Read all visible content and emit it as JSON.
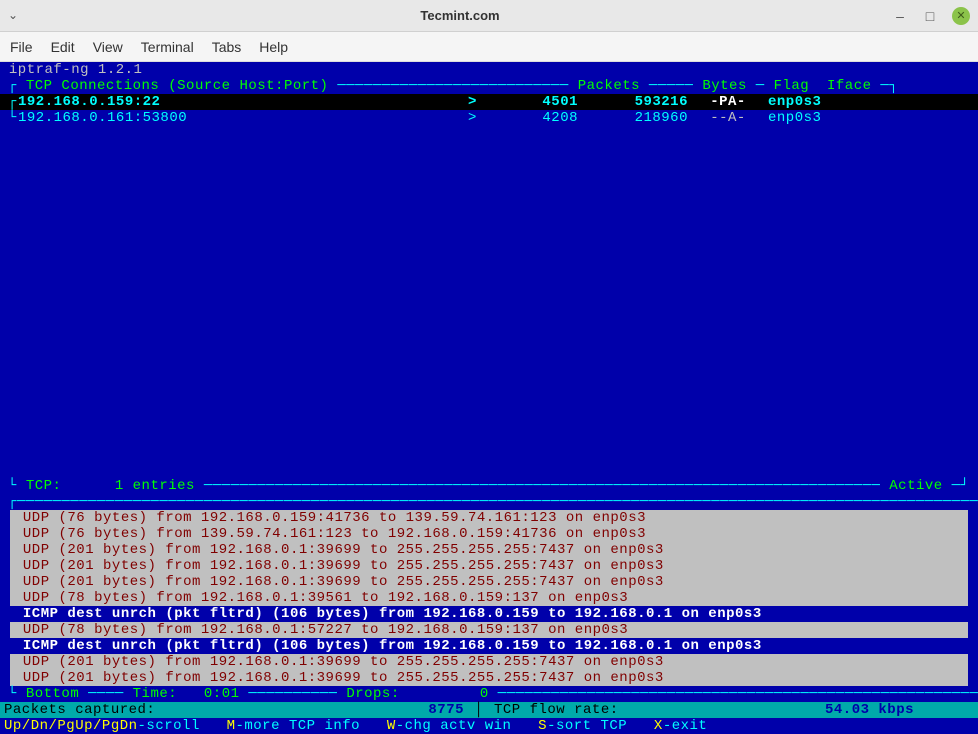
{
  "window": {
    "title": "Tecmint.com"
  },
  "menubar": [
    "File",
    "Edit",
    "View",
    "Terminal",
    "Tabs",
    "Help"
  ],
  "terminal": {
    "program_title": " iptraf-ng 1.2.1",
    "tcp_header": {
      "label": "TCP Connections (Source Host:Port)",
      "packets": "Packets",
      "bytes": "Bytes",
      "flag": "Flag",
      "iface": "Iface"
    },
    "connections": [
      {
        "host": "192.168.0.159:22",
        "dir": ">",
        "packets": "4501",
        "bytes": "593216",
        "flag": "-PA-",
        "iface": "enp0s3",
        "selected": true
      },
      {
        "host": "192.168.0.161:53800",
        "dir": ">",
        "packets": "4208",
        "bytes": "218960",
        "flag": "--A-",
        "iface": "enp0s3",
        "selected": false
      }
    ],
    "tcp_summary": {
      "label": "TCP:",
      "count": "1 entries",
      "status": "Active"
    },
    "log": [
      {
        "proto": "UDP",
        "text": "UDP (76 bytes) from 192.168.0.159:41736 to 139.59.74.161:123 on enp0s3",
        "icmp": false
      },
      {
        "proto": "UDP",
        "text": "UDP (76 bytes) from 139.59.74.161:123 to 192.168.0.159:41736 on enp0s3",
        "icmp": false
      },
      {
        "proto": "UDP",
        "text": "UDP (201 bytes) from 192.168.0.1:39699 to 255.255.255.255:7437 on enp0s3",
        "icmp": false
      },
      {
        "proto": "UDP",
        "text": "UDP (201 bytes) from 192.168.0.1:39699 to 255.255.255.255:7437 on enp0s3",
        "icmp": false
      },
      {
        "proto": "UDP",
        "text": "UDP (201 bytes) from 192.168.0.1:39699 to 255.255.255.255:7437 on enp0s3",
        "icmp": false
      },
      {
        "proto": "UDP",
        "text": "UDP (78 bytes) from 192.168.0.1:39561 to 192.168.0.159:137 on enp0s3",
        "icmp": false
      },
      {
        "proto": "ICMP",
        "text": "ICMP dest unrch (pkt fltrd) (106 bytes) from 192.168.0.159 to 192.168.0.1 on enp0s3",
        "icmp": true
      },
      {
        "proto": "UDP",
        "text": "UDP (78 bytes) from 192.168.0.1:57227 to 192.168.0.159:137 on enp0s3",
        "icmp": false
      },
      {
        "proto": "ICMP",
        "text": "ICMP dest unrch (pkt fltrd) (106 bytes) from 192.168.0.159 to 192.168.0.1 on enp0s3",
        "icmp": true
      },
      {
        "proto": "UDP",
        "text": "UDP (201 bytes) from 192.168.0.1:39699 to 255.255.255.255:7437 on enp0s3",
        "icmp": false
      },
      {
        "proto": "UDP",
        "text": "UDP (201 bytes) from 192.168.0.1:39699 to 255.255.255.255:7437 on enp0s3",
        "icmp": false
      }
    ],
    "bottom": {
      "label": "Bottom",
      "time_label": "Time:",
      "time_val": "0:01",
      "drops_label": "Drops:",
      "drops_val": "0"
    },
    "stats": {
      "captured_label": "Packets captured:",
      "captured_val": "8775",
      "flow_label": "TCP flow rate:",
      "flow_val": "54.03 kbps"
    },
    "help": {
      "scroll": "Up/Dn/PgUp/PgDn",
      "scroll_txt": "-scroll",
      "m": "M",
      "m_txt": "-more TCP info",
      "w": "W",
      "w_txt": "-chg actv win",
      "s": "S",
      "s_txt": "-sort TCP",
      "x": "X",
      "x_txt": "-exit"
    }
  },
  "colors": {
    "terminal_bg": "#0000aa",
    "panel_bg": "#c0c0c0",
    "stats_bg": "#00aaaa",
    "cyan": "#00ffff",
    "yellow": "#ffff00",
    "green": "#00ff00",
    "darkred": "#800000",
    "white": "#ffffff"
  }
}
